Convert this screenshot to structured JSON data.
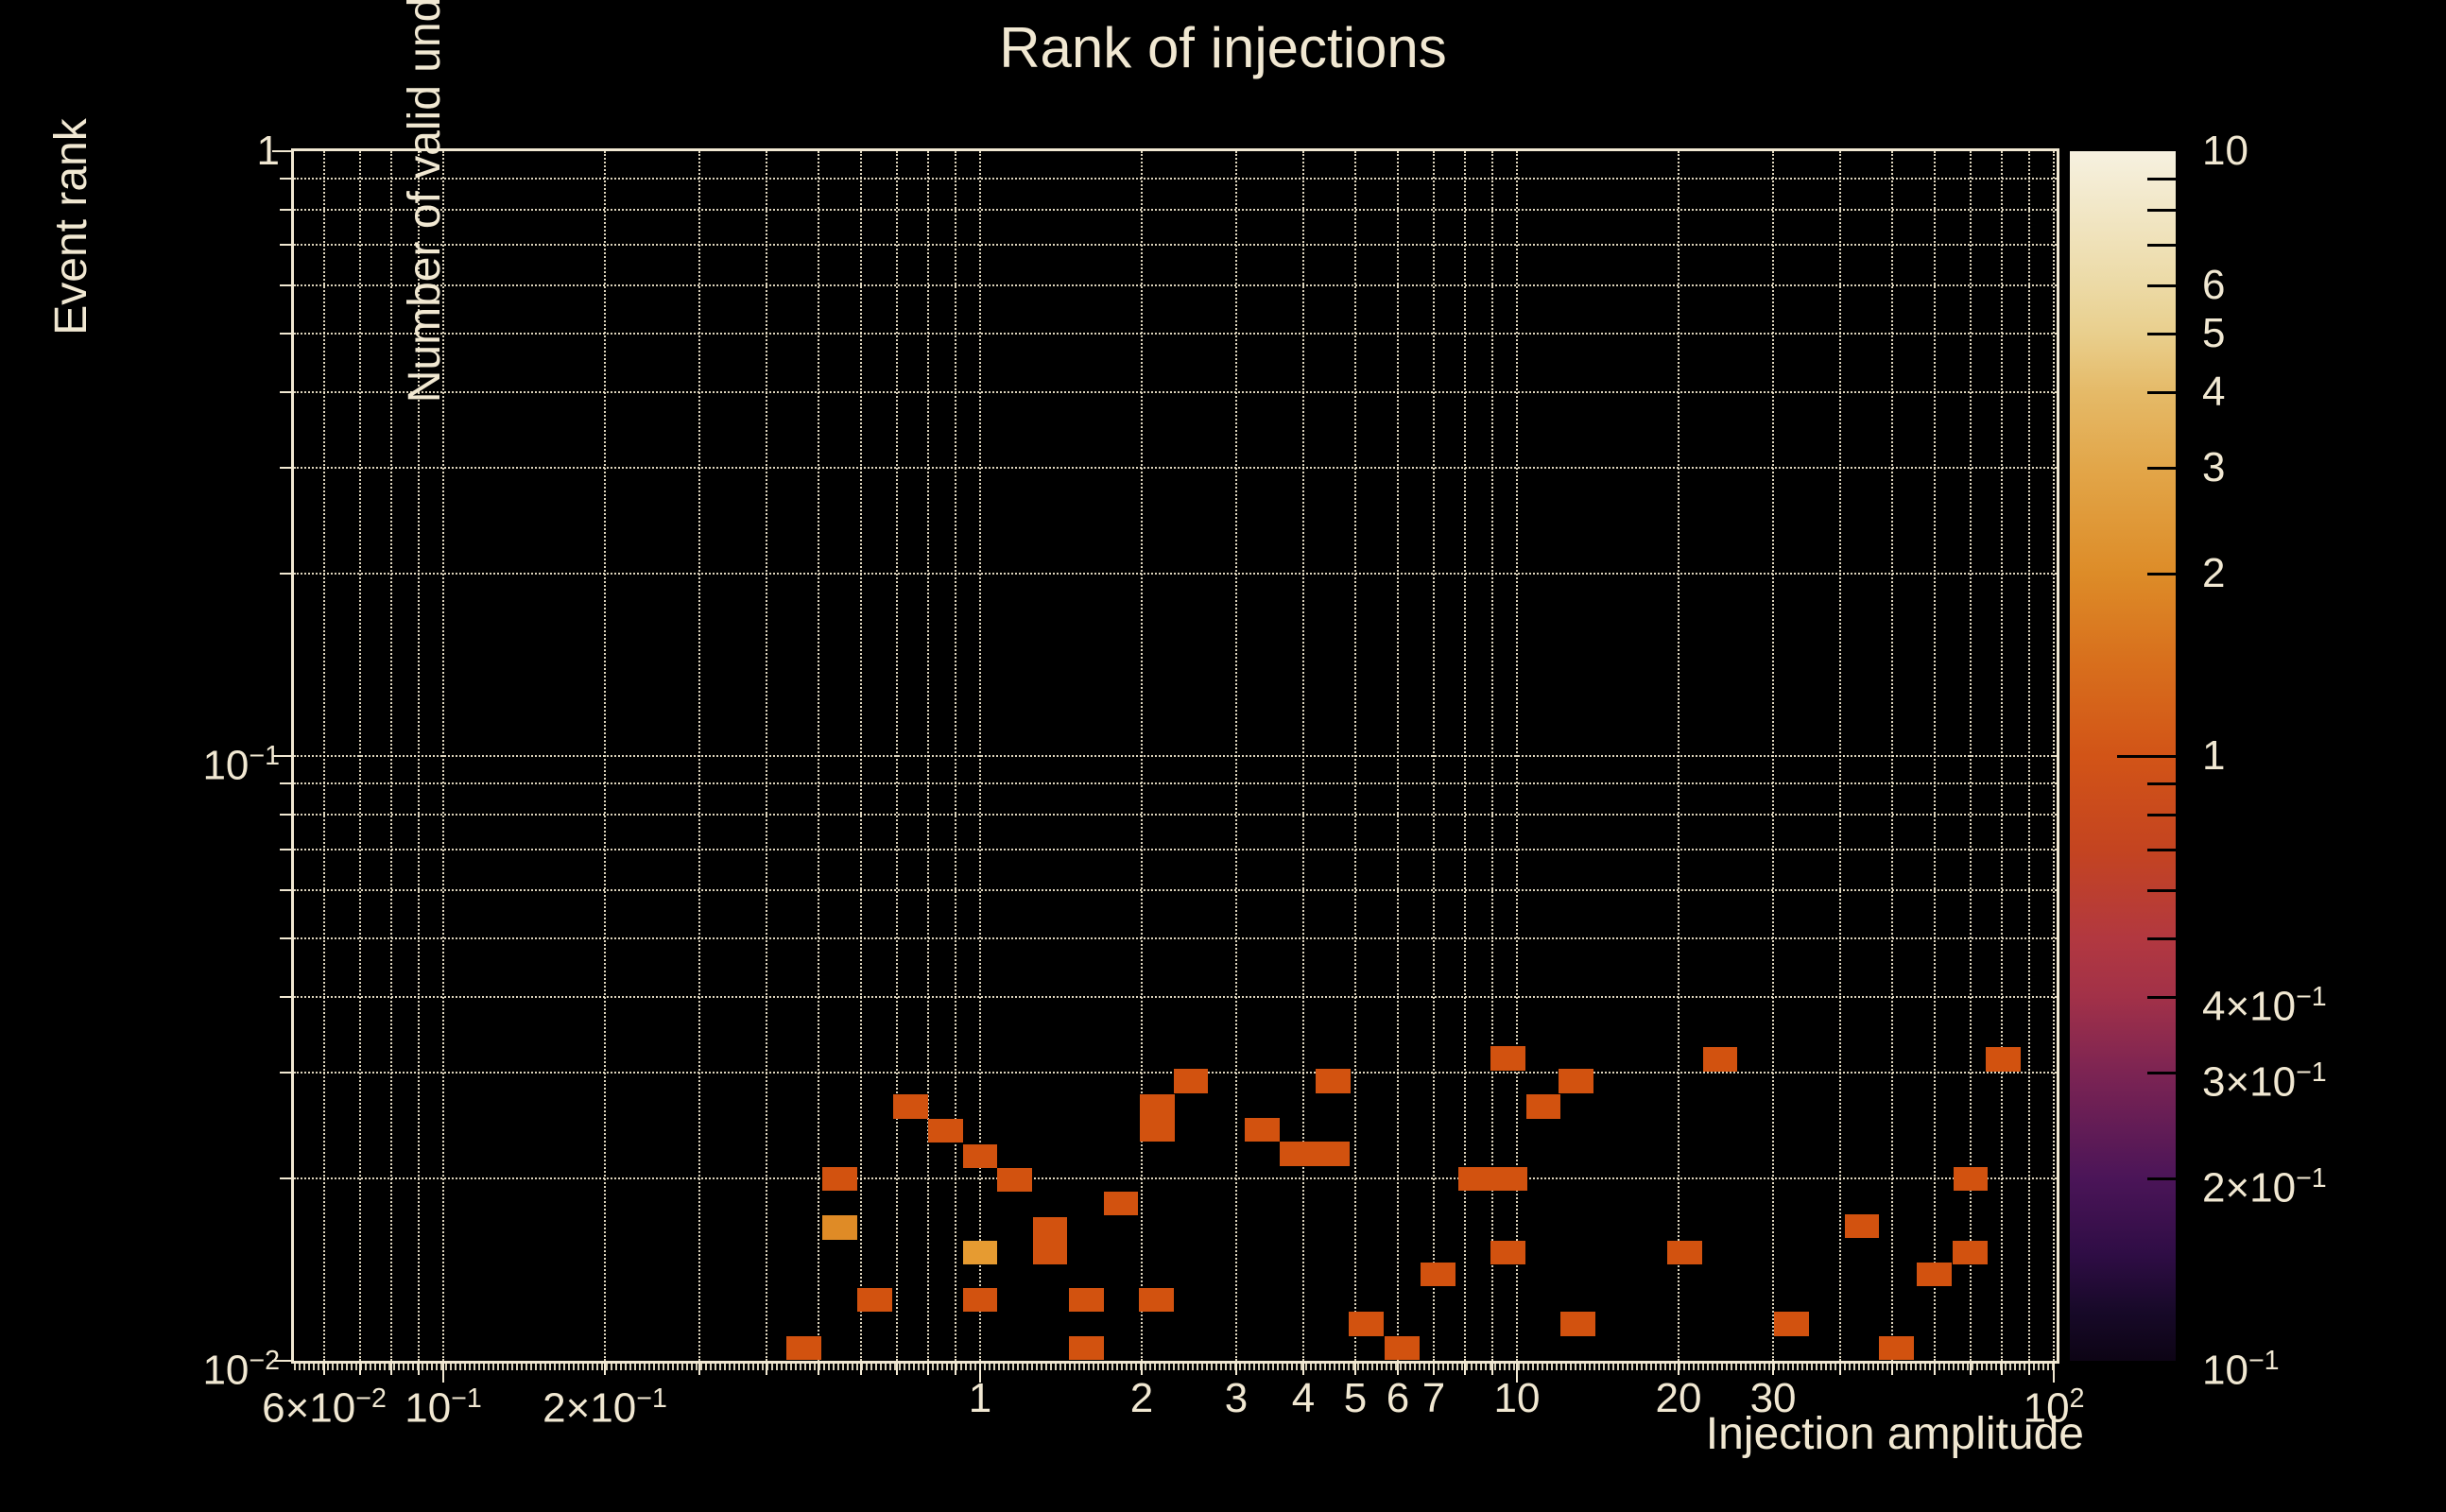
{
  "title": "Rank of injections",
  "colors": {
    "background": "#000000",
    "text": "#f1e8d2",
    "grid": "#f0e6cc",
    "spine": "#f1e8d2"
  },
  "chart_data": {
    "type": "heatmap",
    "title": "Rank of injections",
    "xlabel": "Injection amplitude",
    "ylabel": "Event rank",
    "colorbar_label": "Number of valid undetected injections",
    "x_scale": "log",
    "y_scale": "log",
    "xlim": [
      0.0527,
      101.2
    ],
    "ylim": [
      0.01,
      1
    ],
    "grid": "dotted log minors and majors",
    "x_ticks": [
      {
        "v": 0.06,
        "t": "6×10",
        "e": "−2"
      },
      {
        "v": 0.1,
        "t": "10",
        "e": "−1"
      },
      {
        "v": 0.2,
        "t": "2×10",
        "e": "−1"
      },
      {
        "v": 1,
        "t": "1"
      },
      {
        "v": 2,
        "t": "2"
      },
      {
        "v": 3,
        "t": "3"
      },
      {
        "v": 4,
        "t": "4"
      },
      {
        "v": 5,
        "t": "5"
      },
      {
        "v": 6,
        "t": "6"
      },
      {
        "v": 7,
        "t": "7"
      },
      {
        "v": 10,
        "t": "10"
      },
      {
        "v": 20,
        "t": "20"
      },
      {
        "v": 30,
        "t": "30"
      },
      {
        "v": 100,
        "t": "10",
        "e": "2"
      }
    ],
    "y_ticks": [
      {
        "v": 1,
        "t": "1"
      },
      {
        "v": 0.1,
        "t": "10",
        "e": "−1"
      },
      {
        "v": 0.01,
        "t": "10",
        "e": "−2"
      }
    ],
    "colorbar": {
      "lim": [
        0.1,
        10
      ],
      "labeled_ticks": [
        {
          "v": 10,
          "t": "10"
        },
        {
          "v": 6,
          "t": "6"
        },
        {
          "v": 5,
          "t": "5"
        },
        {
          "v": 4,
          "t": "4"
        },
        {
          "v": 3,
          "t": "3"
        },
        {
          "v": 2,
          "t": "2"
        },
        {
          "v": 1,
          "t": "1"
        },
        {
          "v": 0.4,
          "t": "4×10",
          "e": "−1"
        },
        {
          "v": 0.3,
          "t": "3×10",
          "e": "−1"
        },
        {
          "v": 0.2,
          "t": "2×10",
          "e": "−1"
        },
        {
          "v": 0.1,
          "t": "10",
          "e": "−1"
        }
      ],
      "minor_ticks": [
        9,
        8,
        7,
        6,
        5,
        4,
        3,
        2,
        0.9,
        0.8,
        0.7,
        0.6,
        0.5,
        0.4,
        0.3,
        0.2
      ],
      "major_ticks": [
        1
      ],
      "stops": [
        [
          0.0,
          "#f6f1e0"
        ],
        [
          0.11,
          "#ecdaa6"
        ],
        [
          0.151,
          "#e9cf8d"
        ],
        [
          0.199,
          "#e5ba68"
        ],
        [
          0.262,
          "#e2a649"
        ],
        [
          0.349,
          "#dd8c28"
        ],
        [
          0.42,
          "#d8701d"
        ],
        [
          0.5,
          "#d25417"
        ],
        [
          0.577,
          "#c44420"
        ],
        [
          0.651,
          "#b23840"
        ],
        [
          0.699,
          "#a23148"
        ],
        [
          0.762,
          "#7c2453"
        ],
        [
          0.849,
          "#4b1558"
        ],
        [
          0.912,
          "#2f0d45"
        ],
        [
          0.96,
          "#170928"
        ],
        [
          1.0,
          "#0d0415"
        ]
      ]
    },
    "value_colors": {
      "1": "#d2520f",
      "2": "#df8b26",
      "3": "#e69b31"
    },
    "cell_size_dec": {
      "w": 0.0648,
      "h": 0.0398
    },
    "cells": [
      {
        "x": 0.742,
        "y": 0.0263,
        "n": 1
      },
      {
        "x": 0.861,
        "y": 0.024,
        "n": 1
      },
      {
        "x": 1.0,
        "y": 0.0218,
        "n": 1
      },
      {
        "x": 1.16,
        "y": 0.0199,
        "n": 1
      },
      {
        "x": 0.547,
        "y": 0.02,
        "n": 1
      },
      {
        "x": 0.547,
        "y": 0.0166,
        "n": 2
      },
      {
        "x": 1.0,
        "y": 0.0151,
        "n": 3
      },
      {
        "x": 1.35,
        "y": 0.0165,
        "n": 1
      },
      {
        "x": 1.35,
        "y": 0.0151,
        "n": 1
      },
      {
        "x": 1.83,
        "y": 0.0182,
        "n": 1
      },
      {
        "x": 2.14,
        "y": 0.0263,
        "n": 1
      },
      {
        "x": 2.14,
        "y": 0.0241,
        "n": 1
      },
      {
        "x": 2.47,
        "y": 0.029,
        "n": 1
      },
      {
        "x": 0.636,
        "y": 0.0126,
        "n": 1
      },
      {
        "x": 1.0,
        "y": 0.0126,
        "n": 1
      },
      {
        "x": 1.58,
        "y": 0.0126,
        "n": 1
      },
      {
        "x": 2.13,
        "y": 0.0126,
        "n": 1
      },
      {
        "x": 0.47,
        "y": 0.0105,
        "n": 1
      },
      {
        "x": 1.58,
        "y": 0.0105,
        "n": 1
      },
      {
        "x": 3.35,
        "y": 0.0241,
        "n": 1
      },
      {
        "x": 3.9,
        "y": 0.022,
        "n": 1
      },
      {
        "x": 4.52,
        "y": 0.022,
        "n": 1
      },
      {
        "x": 4.55,
        "y": 0.029,
        "n": 1
      },
      {
        "x": 9.62,
        "y": 0.0316,
        "n": 1
      },
      {
        "x": 12.9,
        "y": 0.029,
        "n": 1
      },
      {
        "x": 11.2,
        "y": 0.0263,
        "n": 1
      },
      {
        "x": 8.38,
        "y": 0.02,
        "n": 1
      },
      {
        "x": 9.7,
        "y": 0.02,
        "n": 1
      },
      {
        "x": 9.62,
        "y": 0.0151,
        "n": 1
      },
      {
        "x": 7.13,
        "y": 0.0139,
        "n": 1
      },
      {
        "x": 5.24,
        "y": 0.0115,
        "n": 1
      },
      {
        "x": 6.11,
        "y": 0.0105,
        "n": 1
      },
      {
        "x": 13.0,
        "y": 0.0115,
        "n": 1
      },
      {
        "x": 20.5,
        "y": 0.0151,
        "n": 1
      },
      {
        "x": 23.9,
        "y": 0.0315,
        "n": 1
      },
      {
        "x": 80.5,
        "y": 0.0315,
        "n": 1
      },
      {
        "x": 70.0,
        "y": 0.02,
        "n": 1
      },
      {
        "x": 43.9,
        "y": 0.0167,
        "n": 1
      },
      {
        "x": 69.8,
        "y": 0.0151,
        "n": 1
      },
      {
        "x": 59.8,
        "y": 0.0139,
        "n": 1
      },
      {
        "x": 32.5,
        "y": 0.0115,
        "n": 1
      },
      {
        "x": 50.9,
        "y": 0.0105,
        "n": 1
      }
    ]
  }
}
